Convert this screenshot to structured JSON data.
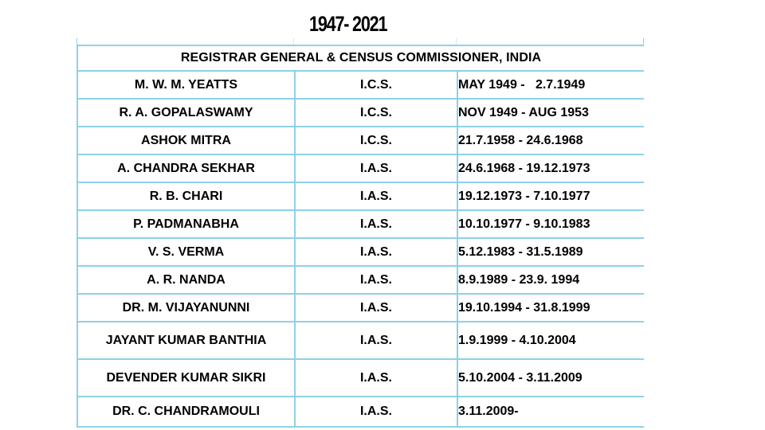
{
  "page": {
    "title": "1947- 2021"
  },
  "table": {
    "header": "REGISTRAR GENERAL & CENSUS COMMISSIONER, INDIA",
    "rows": [
      {
        "name": "M. W. M. YEATTS",
        "service": "I.C.S.",
        "tenure": "MAY 1949 -   2.7.1949"
      },
      {
        "name": "R. A. GOPALASWAMY",
        "service": "I.C.S.",
        "tenure": "NOV 1949 - AUG 1953"
      },
      {
        "name": "ASHOK MITRA",
        "service": "I.C.S.",
        "tenure": "21.7.1958 - 24.6.1968"
      },
      {
        "name": "A. CHANDRA SEKHAR",
        "service": "I.A.S.",
        "tenure": "24.6.1968 - 19.12.1973"
      },
      {
        "name": "R. B. CHARI",
        "service": "I.A.S.",
        "tenure": "19.12.1973 - 7.10.1977"
      },
      {
        "name": "P. PADMANABHA",
        "service": "I.A.S.",
        "tenure": "10.10.1977 - 9.10.1983"
      },
      {
        "name": "V. S. VERMA",
        "service": "I.A.S.",
        "tenure": "5.12.1983 - 31.5.1989"
      },
      {
        "name": "A. R. NANDA",
        "service": "I.A.S.",
        "tenure": "8.9.1989 - 23.9. 1994"
      },
      {
        "name": "DR. M. VIJAYANUNNI",
        "service": "I.A.S.",
        "tenure": "19.10.1994 - 31.8.1999"
      },
      {
        "name": "JAYANT KUMAR BANTHIA",
        "service": "I.A.S.",
        "tenure": "1.9.1999 - 4.10.2004"
      },
      {
        "name": "DEVENDER KUMAR SIKRI",
        "service": "I.A.S.",
        "tenure": "5.10.2004 - 3.11.2009"
      },
      {
        "name": "DR. C. CHANDRAMOULI",
        "service": "I.A.S.",
        "tenure": "3.11.2009-"
      }
    ]
  }
}
